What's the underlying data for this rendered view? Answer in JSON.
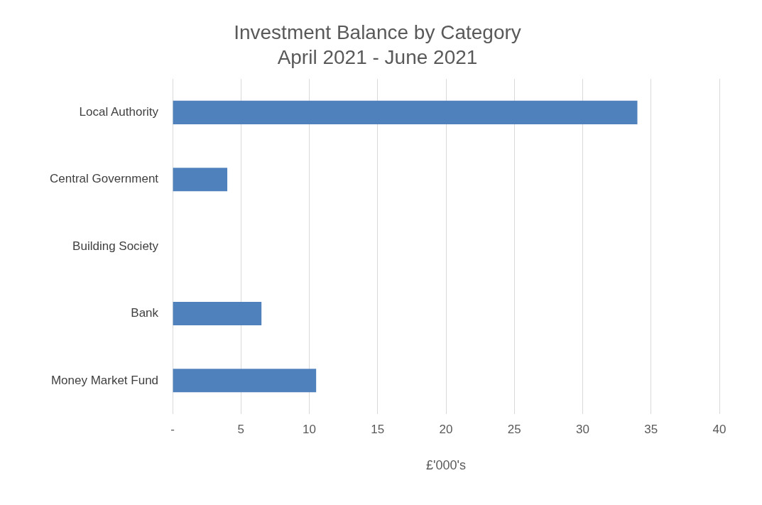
{
  "chart_data": {
    "type": "bar",
    "orientation": "horizontal",
    "title": "Investment Balance by Category",
    "subtitle": "April 2021 - June 2021",
    "xlabel": "£'000's",
    "categories": [
      "Local Authority",
      "Central Government",
      "Building Society",
      "Bank",
      "Money Market Fund"
    ],
    "values": [
      34,
      4,
      0,
      6.5,
      10.5
    ],
    "color": "#4f81bd",
    "xlim": [
      0,
      40
    ],
    "xticks": [
      {
        "value": 0,
        "label": "-"
      },
      5,
      10,
      15,
      20,
      25,
      30,
      35,
      40
    ],
    "grid": "x"
  }
}
